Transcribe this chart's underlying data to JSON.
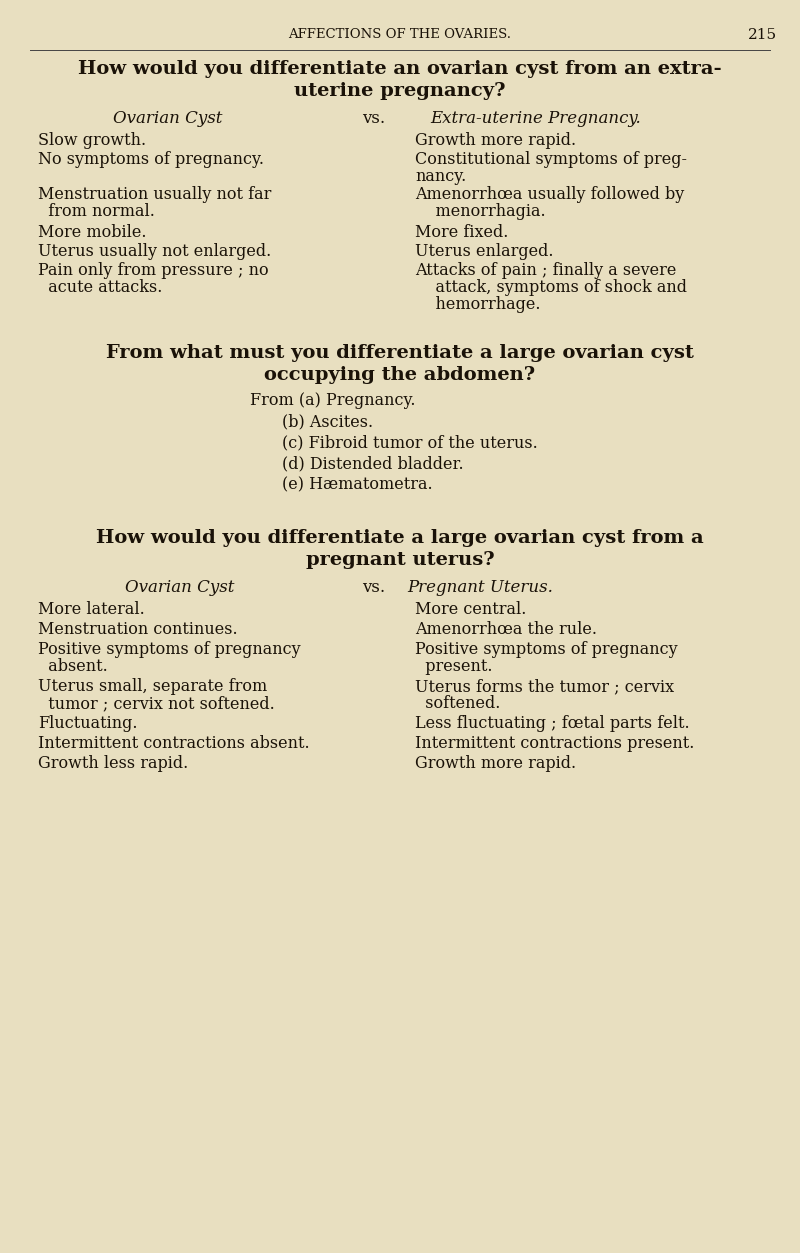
{
  "bg_color": "#e8dfc0",
  "text_color": "#1a1208",
  "page_header": "AFFECTIONS OF THE OVARIES.",
  "page_number": "215",
  "fig_width": 8.0,
  "fig_height": 12.53,
  "dpi": 100
}
